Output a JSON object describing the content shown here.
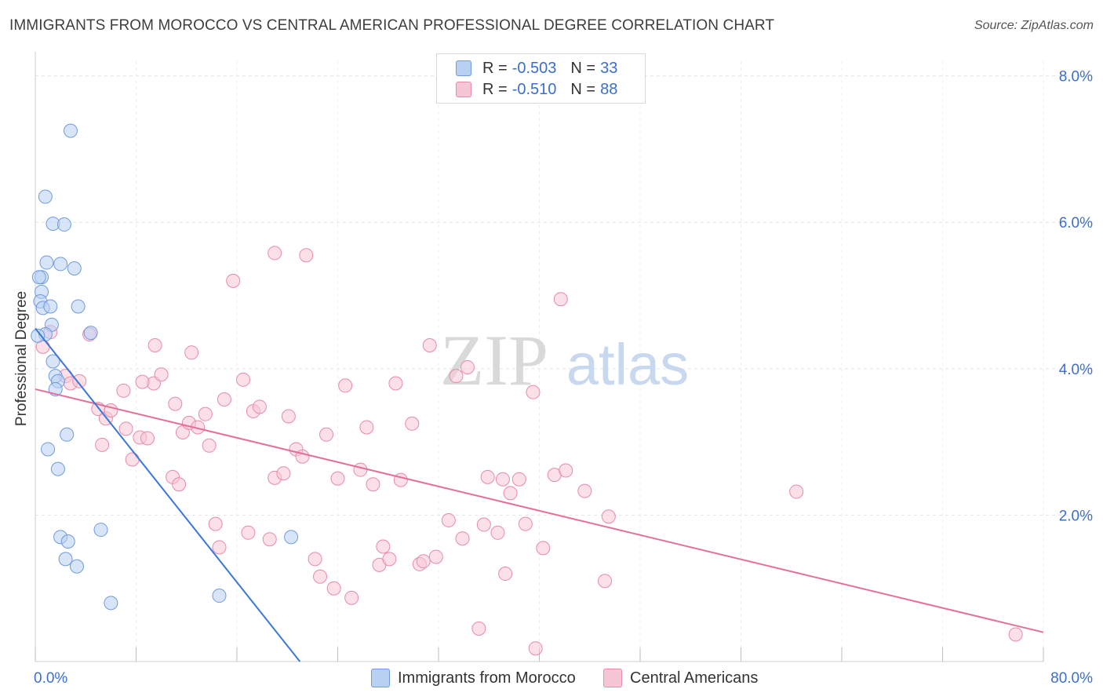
{
  "title": "IMMIGRANTS FROM MOROCCO VS CENTRAL AMERICAN PROFESSIONAL DEGREE CORRELATION CHART",
  "source": "Source: ZipAtlas.com",
  "watermark": {
    "zip": "ZIP",
    "atlas": "atlas"
  },
  "legend": {
    "rows": [
      {
        "r_label": "R =",
        "r_value": "-0.503",
        "n_label": "N =",
        "n_value": "33"
      },
      {
        "r_label": "R =",
        "r_value": "-0.510",
        "n_label": "N =",
        "n_value": "88"
      }
    ]
  },
  "colors": {
    "blue_fill": "#b8d0f2",
    "blue_stroke": "#6f9be0",
    "blue_line": "#3a78d8",
    "pink_fill": "#f7c6d6",
    "pink_stroke": "#e78aab",
    "pink_line": "#e4709a",
    "tick_label": "#3a6fd0",
    "grid": "#e3e3e3"
  },
  "chart_data": {
    "type": "scatter",
    "title": "IMMIGRANTS FROM MOROCCO VS CENTRAL AMERICAN PROFESSIONAL DEGREE CORRELATION CHART",
    "xlabel": "",
    "ylabel": "Professional Degree",
    "xlim": [
      0,
      80
    ],
    "ylim": [
      0,
      8.2
    ],
    "x_tick_labels": [
      "0.0%",
      "80.0%"
    ],
    "y_ticks": [
      2,
      4,
      6,
      8
    ],
    "y_tick_labels": [
      "2.0%",
      "4.0%",
      "6.0%",
      "8.0%"
    ],
    "grid": true,
    "legend_placement": "top-center",
    "series": [
      {
        "name": "Immigrants from Morocco",
        "color": "#b8d0f2",
        "r": -0.503,
        "n": 33,
        "trend": {
          "x": [
            0,
            21.0
          ],
          "y": [
            4.55,
            0.0
          ]
        },
        "points": [
          [
            2.8,
            7.25
          ],
          [
            0.8,
            6.35
          ],
          [
            1.4,
            5.98
          ],
          [
            2.3,
            5.97
          ],
          [
            0.9,
            5.45
          ],
          [
            2.0,
            5.43
          ],
          [
            3.1,
            5.37
          ],
          [
            0.5,
            5.25
          ],
          [
            0.3,
            5.25
          ],
          [
            0.5,
            5.05
          ],
          [
            0.4,
            4.92
          ],
          [
            0.6,
            4.83
          ],
          [
            1.2,
            4.85
          ],
          [
            3.4,
            4.85
          ],
          [
            1.3,
            4.6
          ],
          [
            0.8,
            4.47
          ],
          [
            4.4,
            4.49
          ],
          [
            1.4,
            4.1
          ],
          [
            1.6,
            3.9
          ],
          [
            1.8,
            3.83
          ],
          [
            1.6,
            3.72
          ],
          [
            2.5,
            3.1
          ],
          [
            1.0,
            2.9
          ],
          [
            1.8,
            2.63
          ],
          [
            2.0,
            1.7
          ],
          [
            2.6,
            1.64
          ],
          [
            5.2,
            1.8
          ],
          [
            2.4,
            1.4
          ],
          [
            3.3,
            1.3
          ],
          [
            20.3,
            1.7
          ],
          [
            6.0,
            0.8
          ],
          [
            14.6,
            0.9
          ],
          [
            0.2,
            4.45
          ]
        ]
      },
      {
        "name": "Central Americans",
        "color": "#f7c6d6",
        "r": -0.51,
        "n": 88,
        "trend": {
          "x": [
            0,
            80
          ],
          "y": [
            3.72,
            0.4
          ]
        },
        "points": [
          [
            0.6,
            4.3
          ],
          [
            1.2,
            4.5
          ],
          [
            2.4,
            3.9
          ],
          [
            2.8,
            3.8
          ],
          [
            4.3,
            4.47
          ],
          [
            5.0,
            3.45
          ],
          [
            5.6,
            3.32
          ],
          [
            6.0,
            3.43
          ],
          [
            5.3,
            2.96
          ],
          [
            7.0,
            3.7
          ],
          [
            7.2,
            3.18
          ],
          [
            7.7,
            2.76
          ],
          [
            8.3,
            3.06
          ],
          [
            8.9,
            3.05
          ],
          [
            9.4,
            3.8
          ],
          [
            8.5,
            3.82
          ],
          [
            10.0,
            3.92
          ],
          [
            9.5,
            4.32
          ],
          [
            11.1,
            3.52
          ],
          [
            10.9,
            2.52
          ],
          [
            11.4,
            2.42
          ],
          [
            11.7,
            3.13
          ],
          [
            12.2,
            3.26
          ],
          [
            12.4,
            4.22
          ],
          [
            12.9,
            3.2
          ],
          [
            13.5,
            3.38
          ],
          [
            13.8,
            2.95
          ],
          [
            15.0,
            3.58
          ],
          [
            14.3,
            1.88
          ],
          [
            14.6,
            1.56
          ],
          [
            15.7,
            5.2
          ],
          [
            16.5,
            3.85
          ],
          [
            17.3,
            3.42
          ],
          [
            17.8,
            3.48
          ],
          [
            16.9,
            1.76
          ],
          [
            18.6,
            1.67
          ],
          [
            19.0,
            2.51
          ],
          [
            19.7,
            2.57
          ],
          [
            20.1,
            3.35
          ],
          [
            19.0,
            5.58
          ],
          [
            21.5,
            5.55
          ],
          [
            20.7,
            2.9
          ],
          [
            21.2,
            2.8
          ],
          [
            22.2,
            1.4
          ],
          [
            22.6,
            1.16
          ],
          [
            23.1,
            3.1
          ],
          [
            23.7,
            1.0
          ],
          [
            24.0,
            2.5
          ],
          [
            24.6,
            3.77
          ],
          [
            25.1,
            0.87
          ],
          [
            25.8,
            2.62
          ],
          [
            26.3,
            3.2
          ],
          [
            26.8,
            2.42
          ],
          [
            27.3,
            1.32
          ],
          [
            27.6,
            1.57
          ],
          [
            28.1,
            1.4
          ],
          [
            28.6,
            3.8
          ],
          [
            29.0,
            2.48
          ],
          [
            29.9,
            3.25
          ],
          [
            30.5,
            1.33
          ],
          [
            30.8,
            1.37
          ],
          [
            31.3,
            4.32
          ],
          [
            31.8,
            1.43
          ],
          [
            32.8,
            1.93
          ],
          [
            33.4,
            3.9
          ],
          [
            33.9,
            1.68
          ],
          [
            34.3,
            4.02
          ],
          [
            35.2,
            0.45
          ],
          [
            35.6,
            1.87
          ],
          [
            35.9,
            2.52
          ],
          [
            36.7,
            1.76
          ],
          [
            37.1,
            2.49
          ],
          [
            37.3,
            1.2
          ],
          [
            37.7,
            2.3
          ],
          [
            38.4,
            2.49
          ],
          [
            38.9,
            1.88
          ],
          [
            39.5,
            3.68
          ],
          [
            39.7,
            0.18
          ],
          [
            40.3,
            1.55
          ],
          [
            41.2,
            2.55
          ],
          [
            41.7,
            4.95
          ],
          [
            42.1,
            2.61
          ],
          [
            43.6,
            2.33
          ],
          [
            45.2,
            1.1
          ],
          [
            45.5,
            1.98
          ],
          [
            60.4,
            2.32
          ],
          [
            77.8,
            0.37
          ],
          [
            3.5,
            3.83
          ]
        ]
      }
    ]
  },
  "bottom_legend": [
    {
      "label": "Immigrants from Morocco"
    },
    {
      "label": "Central Americans"
    }
  ]
}
